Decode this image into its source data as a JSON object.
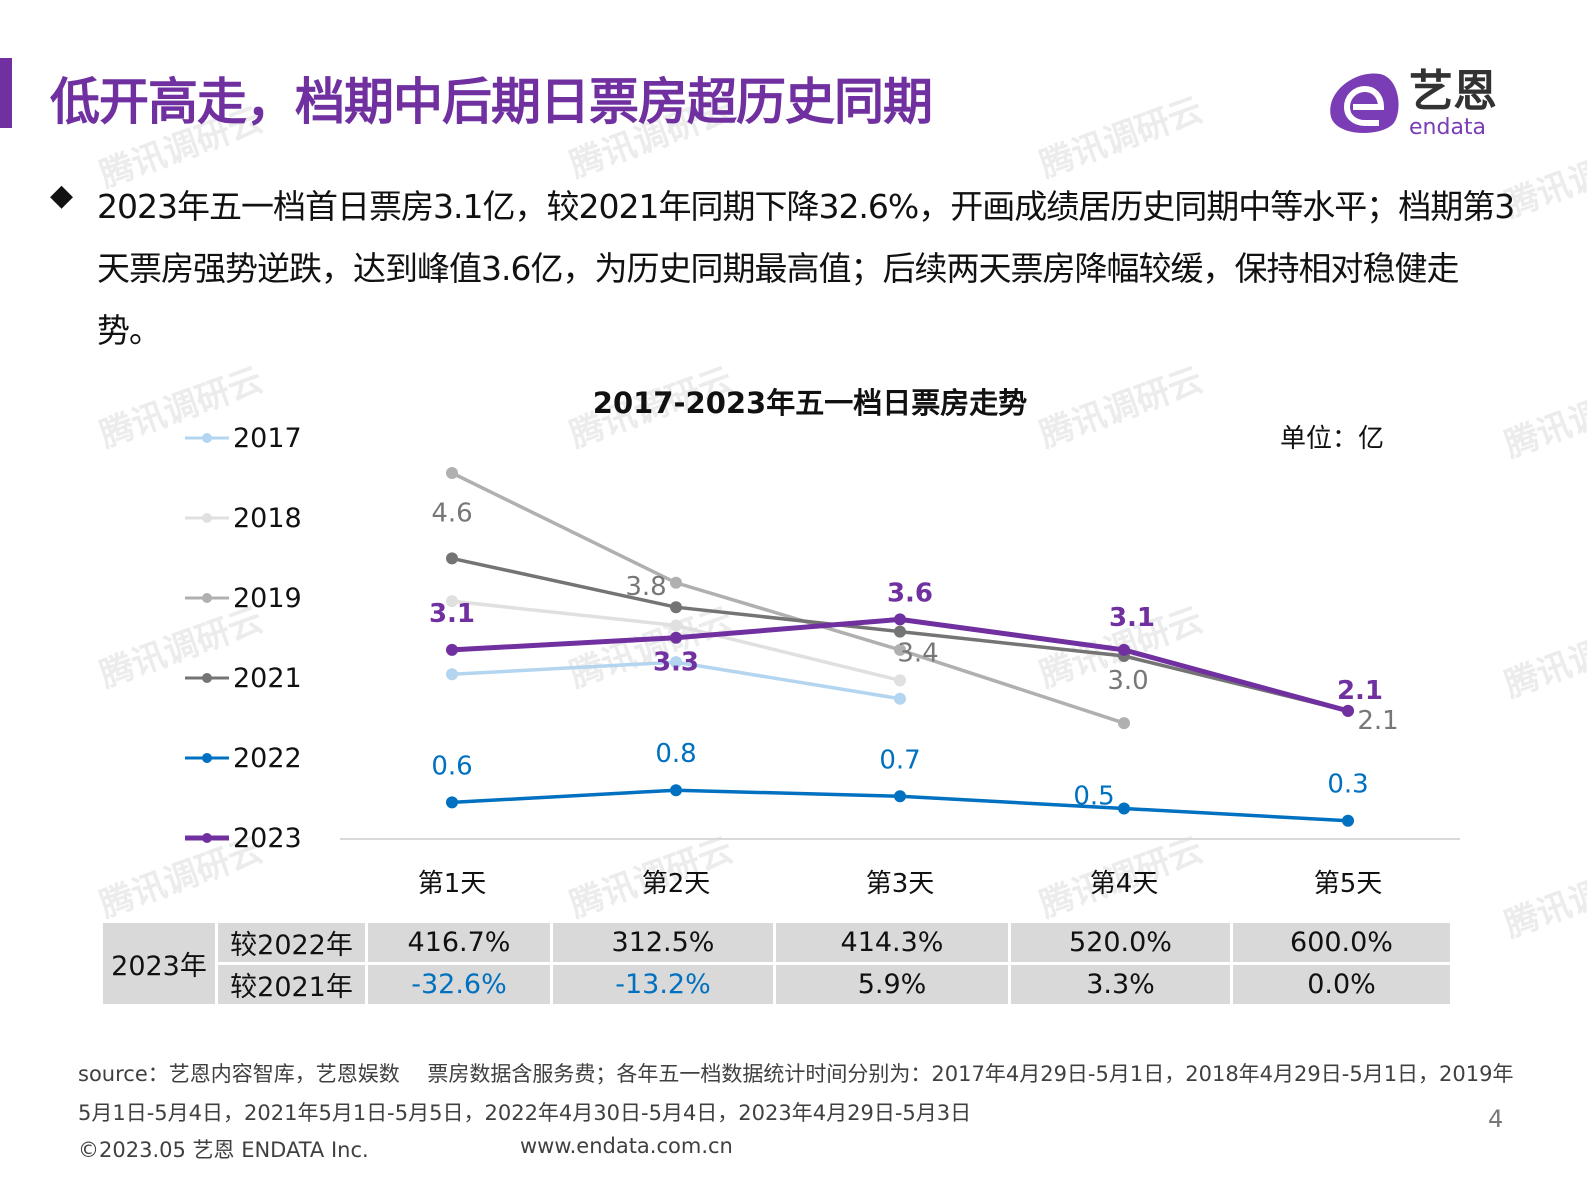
{
  "header": {
    "title": "低开高走，档期中后期日票房超历史同期",
    "logo_text": "艺恩",
    "logo_sub": "endata"
  },
  "summary": "2023年五一档首日票房3.1亿，较2021年同期下降32.6%，开画成绩居历史同期中等水平；档期第3天票房强势逆跌，达到峰值3.6亿，为历史同期最高值；后续两天票房降幅较缓，保持相对稳健走势。",
  "chart_data": {
    "type": "line",
    "title": "2017-2023年五一档日票房走势",
    "unit": "单位：亿",
    "categories": [
      "第1天",
      "第2天",
      "第3天",
      "第4天",
      "第5天"
    ],
    "ylim": [
      0,
      6.5
    ],
    "grid": false,
    "legend_position": "left",
    "series": [
      {
        "name": "2017",
        "color": "#b4d5ef",
        "values": [
          2.7,
          2.9,
          2.3,
          null,
          null
        ],
        "labels": [
          null,
          null,
          null,
          null,
          null
        ]
      },
      {
        "name": "2018",
        "color": "#e0e0e0",
        "values": [
          3.9,
          3.5,
          2.6,
          null,
          null
        ],
        "labels": [
          null,
          null,
          null,
          null,
          null
        ]
      },
      {
        "name": "2019",
        "color": "#b0b0b0",
        "values": [
          6.0,
          4.2,
          3.1,
          1.9,
          null
        ],
        "labels": [
          null,
          null,
          null,
          null,
          null
        ]
      },
      {
        "name": "2021",
        "color": "#747474",
        "values": [
          4.6,
          3.8,
          3.4,
          3.0,
          2.1
        ],
        "labels": [
          "4.6",
          "3.8",
          "3.4",
          "3.0",
          "2.1"
        ]
      },
      {
        "name": "2022",
        "color": "#0070c0",
        "values": [
          0.6,
          0.8,
          0.7,
          0.5,
          0.3
        ],
        "labels": [
          "0.6",
          "0.8",
          "0.7",
          "0.5",
          "0.3"
        ]
      },
      {
        "name": "2023",
        "color": "#7030a0",
        "values": [
          3.1,
          3.3,
          3.6,
          3.1,
          2.1
        ],
        "labels": [
          "3.1",
          "3.3",
          "3.6",
          "3.1",
          "2.1"
        ]
      }
    ]
  },
  "table": {
    "row_header": "2023年",
    "rows": [
      {
        "label": "较2022年",
        "values": [
          "416.7%",
          "312.5%",
          "414.3%",
          "520.0%",
          "600.0%"
        ]
      },
      {
        "label": "较2021年",
        "values": [
          "-32.6%",
          "-13.2%",
          "5.9%",
          "3.3%",
          "0.0%"
        ]
      }
    ]
  },
  "footer": {
    "source": "source：艺恩内容智库，艺恩娱数　 票房数据含服务费；各年五一档数据统计时间分别为：2017年4月29日-5月1日，2018年4月29日-5月1日，2019年5月1日-5月4日，2021年5月1日-5月5日，2022年4月30日-5月4日，2023年4月29日-5月3日",
    "copyright": "©2023.05 艺恩 ENDATA Inc.",
    "website": "www.endata.com.cn",
    "page": "4"
  },
  "watermark": "腾讯调研云"
}
